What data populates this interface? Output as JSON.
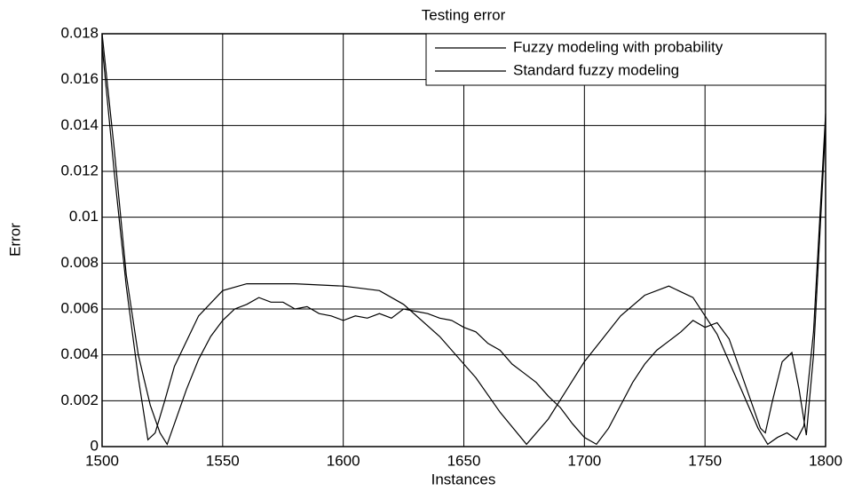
{
  "chart_data": {
    "type": "line",
    "title": "Testing error",
    "xlabel": "Instances",
    "ylabel": "Error",
    "xlim": [
      1500,
      1800
    ],
    "xticks": [
      1500,
      1550,
      1600,
      1650,
      1700,
      1750,
      1800
    ],
    "ylim": [
      0,
      0.018
    ],
    "yticks": [
      0,
      0.002,
      0.004,
      0.006,
      0.008,
      0.01,
      0.012,
      0.014,
      0.016,
      0.018
    ],
    "grid": true,
    "legend": "upper right",
    "series": [
      {
        "name": "Fuzzy modeling with probability",
        "color": "#000000",
        "x": [
          1500,
          1505,
          1510,
          1515,
          1519,
          1522,
          1526,
          1530,
          1540,
          1550,
          1560,
          1580,
          1600,
          1615,
          1625,
          1640,
          1655,
          1665,
          1676,
          1685,
          1700,
          1715,
          1725,
          1735,
          1745,
          1755,
          1765,
          1772,
          1776,
          1780,
          1784,
          1788,
          1791,
          1795,
          1800
        ],
        "values": [
          0.0175,
          0.012,
          0.007,
          0.003,
          0.0003,
          0.0006,
          0.002,
          0.0035,
          0.0057,
          0.0068,
          0.0071,
          0.0071,
          0.007,
          0.0068,
          0.0062,
          0.0048,
          0.003,
          0.0015,
          0.0001,
          0.0012,
          0.0037,
          0.0057,
          0.0066,
          0.007,
          0.0065,
          0.0049,
          0.0025,
          0.0008,
          0.0001,
          0.0004,
          0.0006,
          0.0003,
          0.0009,
          0.005,
          0.0145
        ]
      },
      {
        "name": "Standard fuzzy modeling",
        "color": "#000000",
        "x": [
          1500,
          1505,
          1510,
          1515,
          1520,
          1524,
          1527,
          1530,
          1535,
          1540,
          1545,
          1550,
          1555,
          1560,
          1565,
          1570,
          1575,
          1580,
          1585,
          1590,
          1595,
          1600,
          1605,
          1610,
          1615,
          1620,
          1625,
          1630,
          1635,
          1640,
          1645,
          1650,
          1655,
          1660,
          1665,
          1670,
          1675,
          1680,
          1685,
          1690,
          1695,
          1700,
          1705,
          1710,
          1715,
          1720,
          1725,
          1730,
          1735,
          1740,
          1745,
          1750,
          1755,
          1760,
          1765,
          1770,
          1773,
          1775,
          1778,
          1782,
          1786,
          1789,
          1792,
          1795,
          1800
        ],
        "values": [
          0.018,
          0.013,
          0.0075,
          0.004,
          0.0018,
          0.0006,
          0.0001,
          0.001,
          0.0025,
          0.0038,
          0.0048,
          0.0055,
          0.006,
          0.0062,
          0.0065,
          0.0063,
          0.0063,
          0.006,
          0.0061,
          0.0058,
          0.0057,
          0.0055,
          0.0057,
          0.0056,
          0.0058,
          0.0056,
          0.006,
          0.0059,
          0.0058,
          0.0056,
          0.0055,
          0.0052,
          0.005,
          0.0045,
          0.0042,
          0.0036,
          0.0032,
          0.0028,
          0.0022,
          0.0017,
          0.001,
          0.0004,
          0.0001,
          0.0008,
          0.0018,
          0.0028,
          0.0036,
          0.0042,
          0.0046,
          0.005,
          0.0055,
          0.0052,
          0.0054,
          0.0047,
          0.0032,
          0.0017,
          0.0008,
          0.0006,
          0.002,
          0.0037,
          0.0041,
          0.0025,
          0.0005,
          0.004,
          0.014
        ]
      }
    ]
  }
}
